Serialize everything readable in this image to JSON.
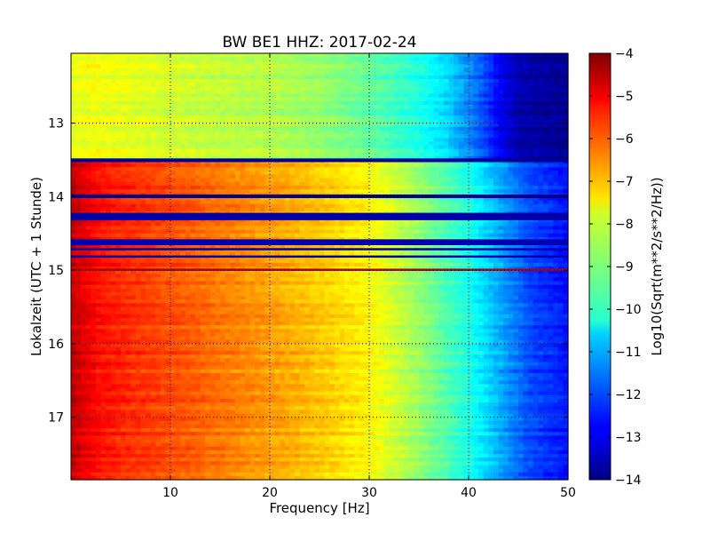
{
  "chart_data": {
    "type": "heatmap",
    "title": "BW BE1 HHZ: 2017-02-24",
    "xlabel": "Frequency [Hz]",
    "ylabel": "Lokalzeit (UTC + 1 Stunde)",
    "colorbar_label": "Log10(Sqrt(m**2/s**2/Hz))",
    "colormap": "jet",
    "x_range": [
      0,
      50
    ],
    "y_range": [
      12.05,
      17.85
    ],
    "y_inverted": true,
    "clim": [
      -14,
      -4
    ],
    "grid": true,
    "x_ticks": [
      10,
      20,
      30,
      40,
      50
    ],
    "x_tick_labels": [
      "10",
      "20",
      "30",
      "40",
      "50"
    ],
    "y_ticks": [
      13,
      14,
      15,
      16,
      17
    ],
    "y_tick_labels": [
      "13",
      "14",
      "15",
      "16",
      "17"
    ],
    "colorbar_ticks": [
      -4,
      -5,
      -6,
      -7,
      -8,
      -9,
      -10,
      -11,
      -12,
      -13,
      -14
    ],
    "colorbar_tick_labels": [
      "−4",
      "−5",
      "−6",
      "−7",
      "−8",
      "−9",
      "−10",
      "−11",
      "−12",
      "−13",
      "−14"
    ],
    "frequency_profile_quiet": {
      "note": "period 12.05-13.5 h",
      "freq": [
        0,
        2,
        5,
        10,
        15,
        20,
        25,
        30,
        35,
        38,
        41,
        43,
        45,
        50
      ],
      "value": [
        -8.0,
        -7.9,
        -8.0,
        -8.2,
        -8.4,
        -8.5,
        -8.8,
        -9.3,
        -10.0,
        -10.7,
        -11.8,
        -12.8,
        -13.6,
        -13.9
      ]
    },
    "frequency_profile_active": {
      "note": "periods after 13.5 h",
      "freq": [
        0,
        1,
        3,
        5,
        10,
        15,
        20,
        25,
        30,
        33,
        36,
        40,
        43,
        46,
        50
      ],
      "value": [
        -4.6,
        -4.9,
        -5.4,
        -5.6,
        -6.0,
        -6.4,
        -6.8,
        -7.2,
        -7.7,
        -8.3,
        -9.0,
        -10.0,
        -11.0,
        -12.0,
        -12.6
      ]
    },
    "gap_bands": [
      {
        "start": 13.48,
        "end": 13.53,
        "value": -13.8
      },
      {
        "start": 13.97,
        "end": 14.02,
        "value": -13.8
      },
      {
        "start": 14.22,
        "end": 14.32,
        "value": -13.6
      },
      {
        "start": 14.58,
        "end": 14.66,
        "value": -13.5
      },
      {
        "start": 14.7,
        "end": 14.73,
        "value": -13.5
      },
      {
        "start": 14.8,
        "end": 14.83,
        "value": -13.6
      },
      {
        "start": 14.98,
        "end": 15.01,
        "value": -4.5
      }
    ]
  }
}
